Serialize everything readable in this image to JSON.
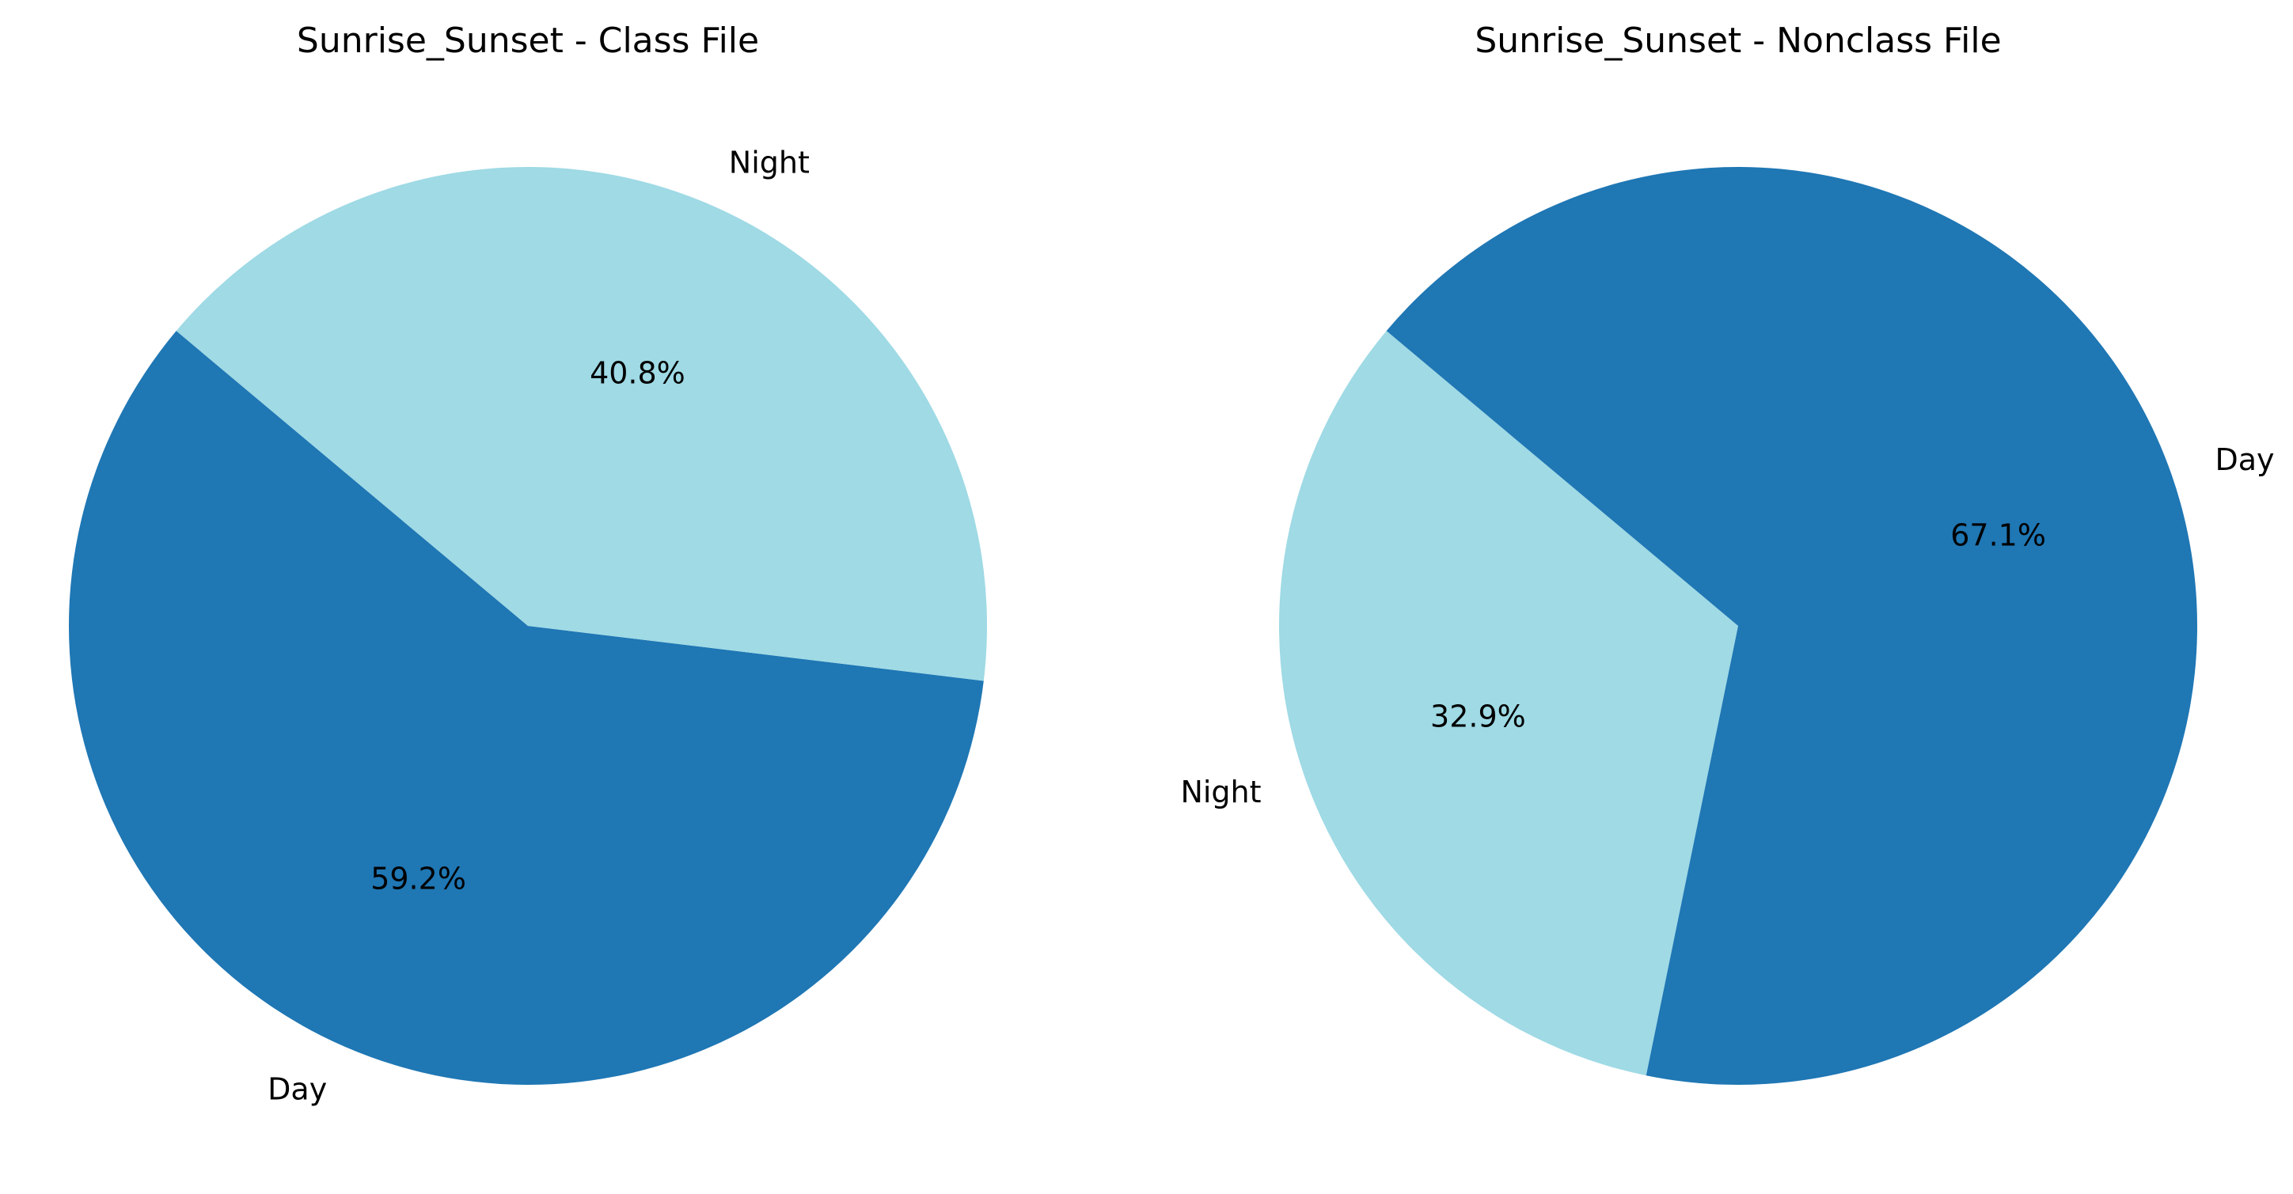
{
  "chart_data": [
    {
      "type": "pie",
      "title": "Sunrise_Sunset - Class File",
      "start_angle": 140,
      "slices": [
        {
          "label": "Day",
          "value": 59.2,
          "pct_label": "59.2%",
          "color": "#1f77b4"
        },
        {
          "label": "Night",
          "value": 40.8,
          "pct_label": "40.8%",
          "color": "#9fdae5"
        }
      ]
    },
    {
      "type": "pie",
      "title": "Sunrise_Sunset - Nonclass File",
      "start_angle": 140,
      "slices": [
        {
          "label": "Night",
          "value": 32.9,
          "pct_label": "32.9%",
          "color": "#9fdae5"
        },
        {
          "label": "Day",
          "value": 67.1,
          "pct_label": "67.1%",
          "color": "#1f77b4"
        }
      ]
    }
  ]
}
